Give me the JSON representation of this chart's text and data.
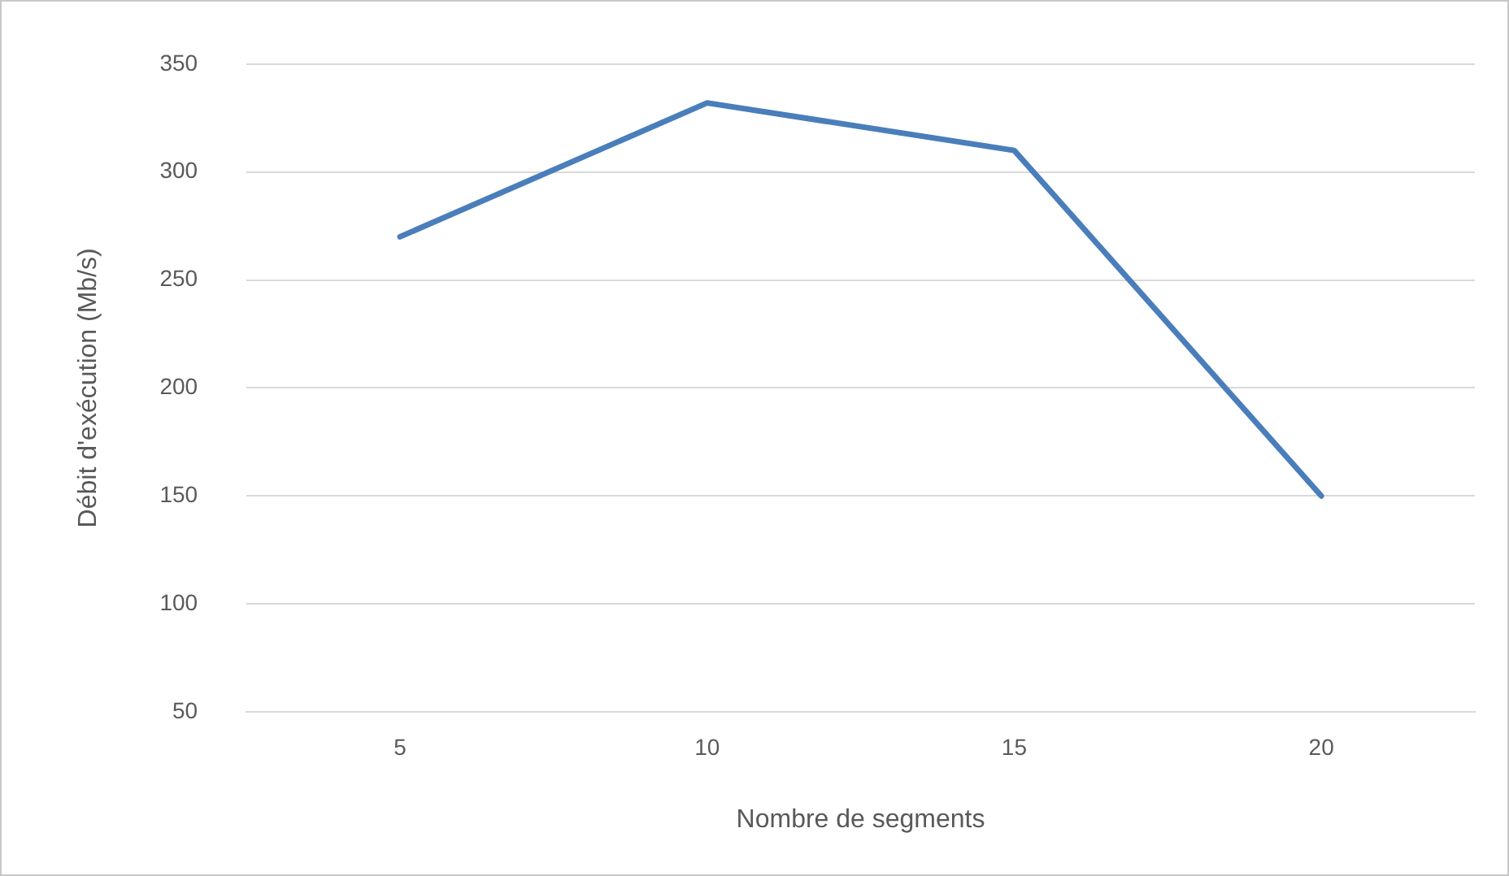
{
  "chart_data": {
    "type": "line",
    "xlabel": "Nombre de segments",
    "ylabel": "Débit d'exécution (Mb/s)",
    "categories": [
      "5",
      "10",
      "15",
      "20"
    ],
    "series": [
      {
        "color": "#4a7ebb",
        "values": [
          270,
          332,
          310,
          150
        ]
      }
    ],
    "ylim": [
      50,
      350
    ],
    "yticks": [
      50,
      100,
      150,
      200,
      250,
      300,
      350
    ],
    "grid": "y",
    "legend": false,
    "marker": "none",
    "line_style": "solid"
  }
}
